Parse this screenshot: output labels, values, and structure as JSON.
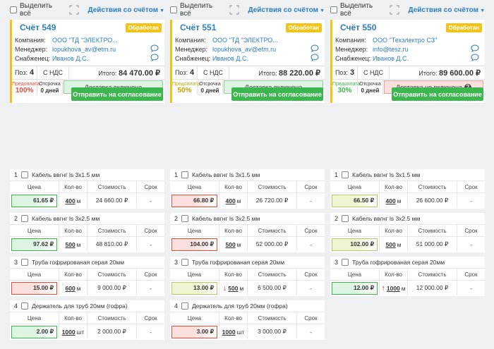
{
  "common": {
    "select_all_label": "Выделить всё",
    "actions_label": "Действия со счётом",
    "company_label": "Компания:",
    "manager_label": "Менеджер:",
    "supplier_label": "Снабженец:",
    "positions_label": "Поз:",
    "vat_label": "С НДС",
    "total_label": "Итого:",
    "prepay_label": "Предоплата",
    "defer_label": "Отсрочка",
    "send_button": "Отправить на согласование",
    "col_price": "Цена",
    "col_qty": "Кол-во",
    "col_cost": "Стоимость",
    "col_term": "Срок"
  },
  "colors": {
    "accent": "#2b7dbe",
    "status": "#f0c419",
    "green": "#3cb64f",
    "red": "#e74c3c"
  },
  "invoices": [
    {
      "number": "Счёт 549",
      "status": "Обработан",
      "company": "ООО \"ТД \"ЭЛЕКТРО...",
      "manager": "lopukhova_av@etm.ru",
      "supplier": "Иванов Д.С.",
      "positions": "4",
      "total": "84 470.00 ₽",
      "prepay_pct": "100%",
      "prepay_color": "#e74c3c",
      "defer_days": "0 дней",
      "delivery": "Доставка включена",
      "delivery_ok": true
    },
    {
      "number": "Счёт 551",
      "status": "Обработан",
      "company": "ООО \"ТД \"ЭЛЕКТРО...",
      "manager": "lopukhova_av@etm.ru",
      "supplier": "Иванов Д.С.",
      "positions": "4",
      "total": "88 220.00 ₽",
      "prepay_pct": "50%",
      "prepay_color": "#c9a400",
      "defer_days": "0 дней",
      "delivery": "Доставка включена",
      "delivery_ok": true
    },
    {
      "number": "Счёт 550",
      "status": "Обработан",
      "company": "ООО \"Техэлектро СЗ\"",
      "manager": "info@tesz.ru",
      "supplier": "Иванов Д.С.",
      "positions": "3",
      "total": "89 600.00 ₽",
      "prepay_pct": "30%",
      "prepay_color": "#3cb64f",
      "defer_days": "0 дней",
      "delivery": "Доставка не включена",
      "delivery_ok": false
    }
  ],
  "items": [
    [
      {
        "num": "1",
        "name": "Кабель ввгнг ls 3x1.5 мм",
        "price": "61.65 ₽",
        "price_state": "best",
        "qty": "400",
        "unit": "м",
        "cost": "24 660.00 ₽",
        "term": "-",
        "arrow": ""
      },
      {
        "num": "2",
        "name": "Кабель ввгнг ls 3x2.5 мм",
        "price": "97.62 ₽",
        "price_state": "best",
        "qty": "500",
        "unit": "м",
        "cost": "48 810.00 ₽",
        "term": "-",
        "arrow": ""
      },
      {
        "num": "3",
        "name": "Труба гофрированая серая 20мм",
        "price": "15.00 ₽",
        "price_state": "worst",
        "qty": "600",
        "unit": "м",
        "cost": "9 000.00 ₽",
        "term": "-",
        "arrow": ""
      },
      {
        "num": "4",
        "name": "Держатель для труб 20мм (гофра)",
        "price": "2.00 ₽",
        "price_state": "best",
        "qty": "1000",
        "unit": "шт",
        "cost": "2 000.00 ₽",
        "term": "-",
        "arrow": ""
      }
    ],
    [
      {
        "num": "1",
        "name": "Кабель ввгнг ls 3x1.5 мм",
        "price": "66.80 ₽",
        "price_state": "worst",
        "qty": "400",
        "unit": "м",
        "cost": "26 720.00 ₽",
        "term": "-",
        "arrow": ""
      },
      {
        "num": "2",
        "name": "Кабель ввгнг ls 3x2.5 мм",
        "price": "104.00 ₽",
        "price_state": "worst",
        "qty": "500",
        "unit": "м",
        "cost": "52 000.00 ₽",
        "term": "-",
        "arrow": ""
      },
      {
        "num": "3",
        "name": "Труба гофрированая серая 20мм",
        "price": "13.00 ₽",
        "price_state": "mid",
        "qty": "500",
        "unit": "м",
        "cost": "6 500.00 ₽",
        "term": "-",
        "arrow": "↓"
      },
      {
        "num": "4",
        "name": "Держатель для труб 20мм (гофра)",
        "price": "3.00 ₽",
        "price_state": "worst",
        "qty": "1000",
        "unit": "шт",
        "cost": "3 000.00 ₽",
        "term": "-",
        "arrow": ""
      }
    ],
    [
      {
        "num": "1",
        "name": "Кабель ввгнг ls 3x1.5 мм",
        "price": "66.50 ₽",
        "price_state": "mid",
        "qty": "400",
        "unit": "м",
        "cost": "26 600.00 ₽",
        "term": "-",
        "arrow": ""
      },
      {
        "num": "2",
        "name": "Кабель ввгнг ls 3x2.5 мм",
        "price": "102.00 ₽",
        "price_state": "mid",
        "qty": "500",
        "unit": "м",
        "cost": "51 000.00 ₽",
        "term": "-",
        "arrow": ""
      },
      {
        "num": "3",
        "name": "Труба гофрированая серая 20мм",
        "price": "12.00 ₽",
        "price_state": "best",
        "qty": "1000",
        "unit": "м",
        "cost": "12 000.00 ₽",
        "term": "-",
        "arrow": "↑"
      }
    ]
  ]
}
